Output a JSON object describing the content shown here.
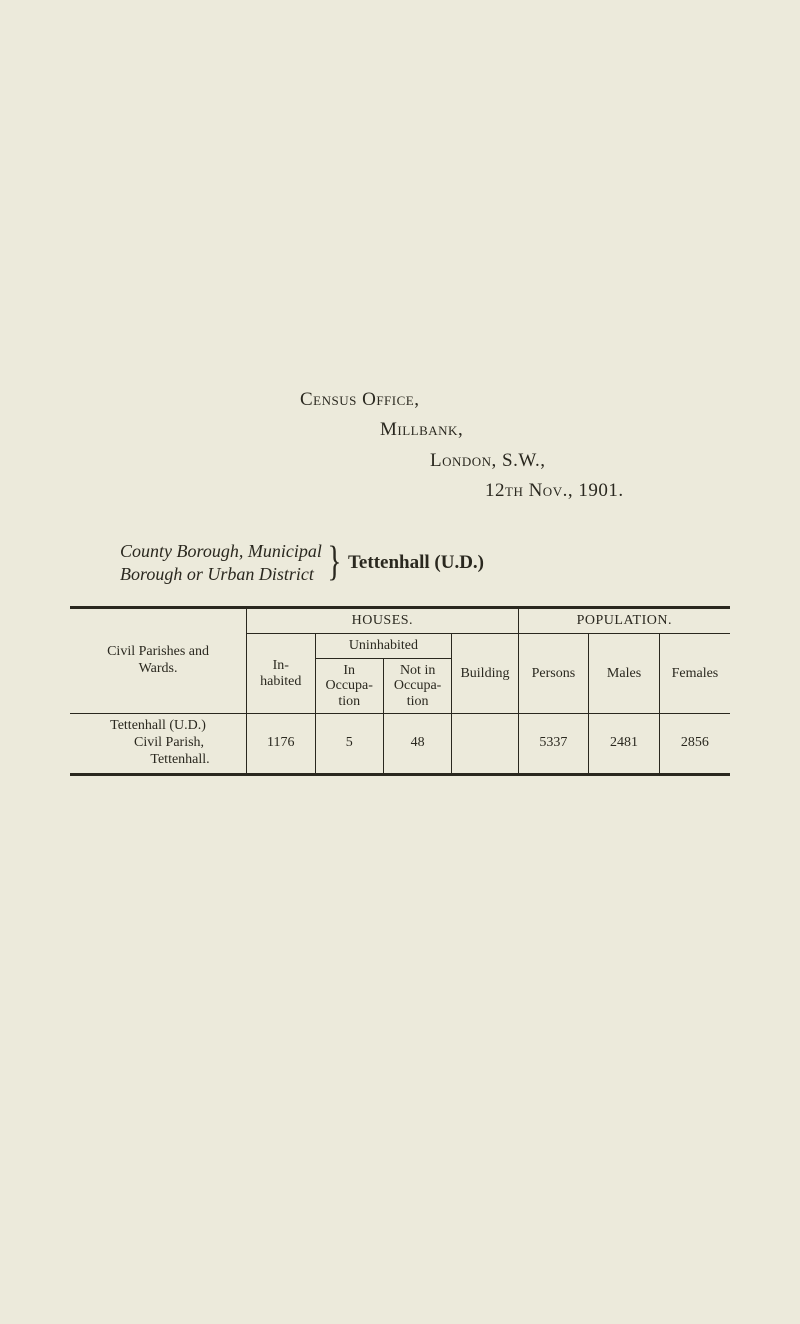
{
  "address": {
    "line1": "Census Office,",
    "line2": "Millbank,",
    "line3": "London, S.W.,",
    "line4": "12th Nov., 1901."
  },
  "caption": {
    "left_line1": "County Borough, Municipal",
    "left_line2": "Borough or Urban District",
    "bracket": "}",
    "right": "Tettenhall (U.D.)"
  },
  "table": {
    "group_houses": "HOUSES.",
    "group_population": "POPULATION.",
    "col_civil": "Civil Parishes and\nWards.",
    "col_inhabited": "In-\nhabited",
    "group_uninhabited": "Uninhabited",
    "col_in_occ": "In\nOccupa-\ntion",
    "col_not_occ": "Not in\nOccupa-\ntion",
    "col_building": "Building",
    "col_persons": "Persons",
    "col_males": "Males",
    "col_females": "Females",
    "row": {
      "label_l1": "Tettenhall (U.D.)",
      "label_l2": "Civil Parish,",
      "label_l3": "Tettenhall.",
      "inhabited": "1176",
      "in_occ": "5",
      "not_occ": "48",
      "building": "",
      "persons": "5337",
      "males": "2481",
      "females": "2856"
    }
  },
  "colors": {
    "background": "#eceadb",
    "ink": "#2a281f"
  }
}
